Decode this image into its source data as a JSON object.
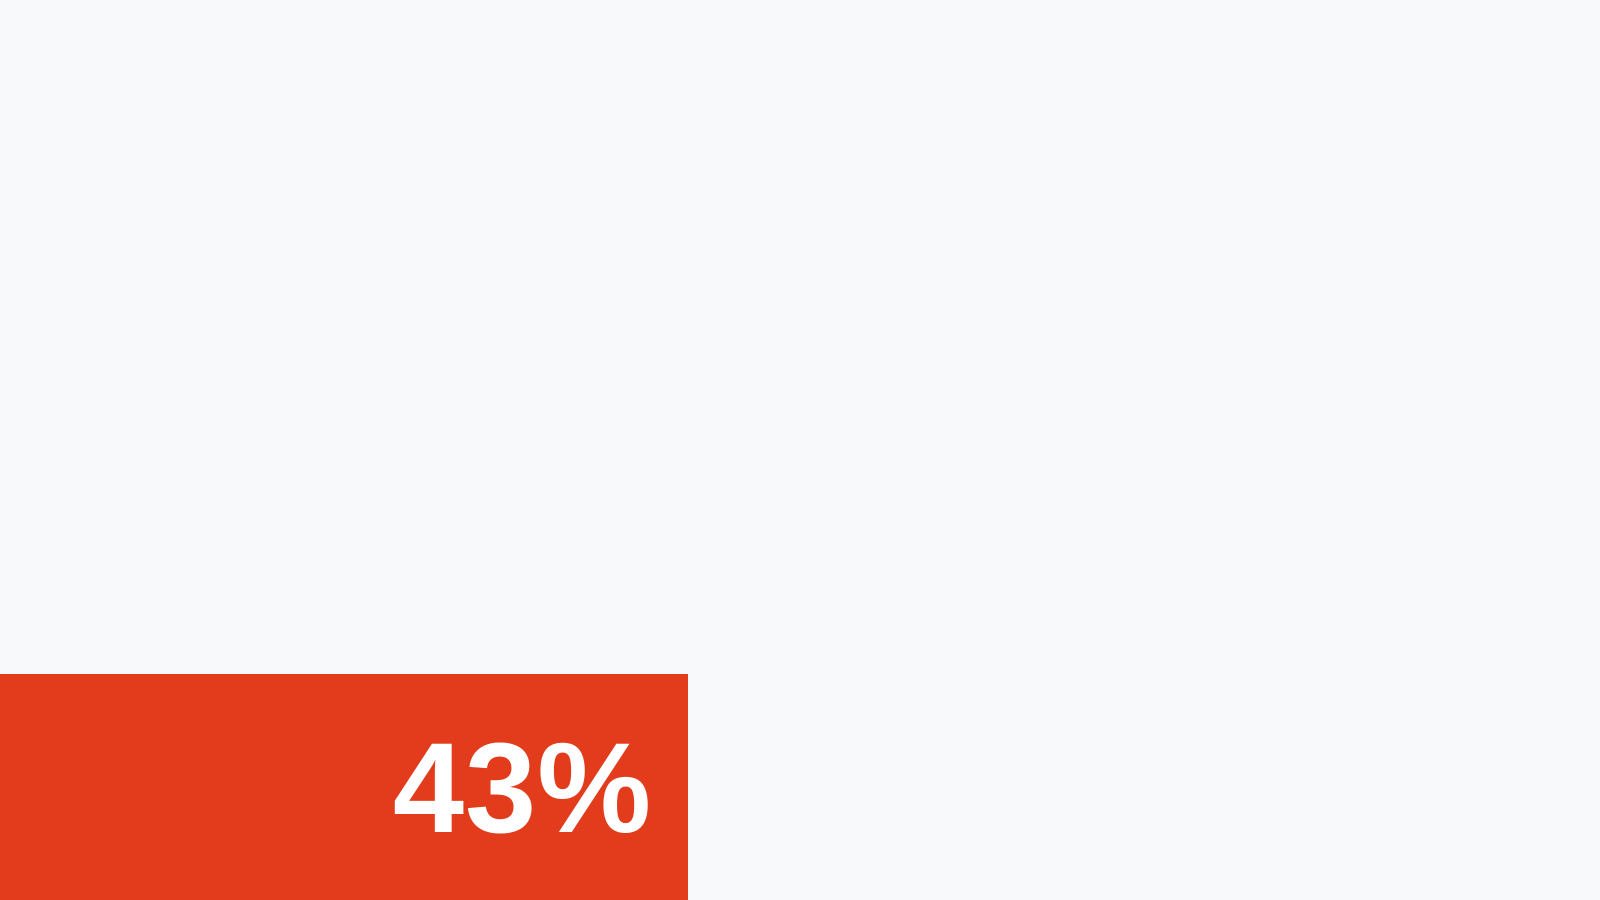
{
  "progress": {
    "value": 0.43,
    "label": "43%",
    "fill_color": "#e23c1c",
    "text_color": "#ffffff"
  },
  "background_color": "#f8f9fa"
}
